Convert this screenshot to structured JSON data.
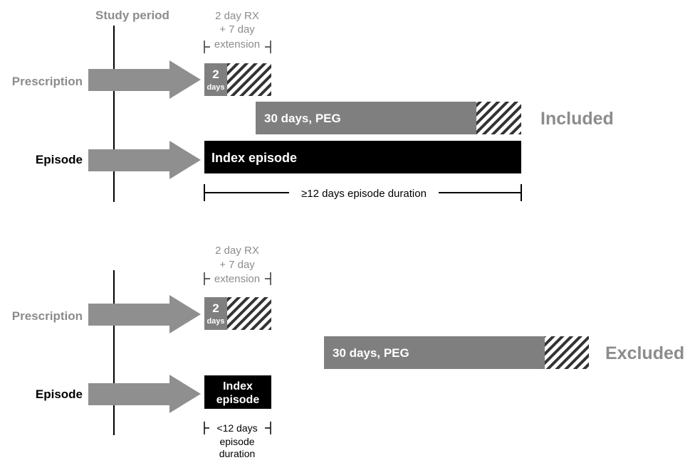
{
  "colors": {
    "gray_text": "#8c8c8c",
    "gray_arrow": "#8f8f8f",
    "gray_bar": "#7f7f7f",
    "black": "#000000",
    "white": "#ffffff",
    "hatch": "#333333"
  },
  "study_period": "Study period",
  "included": {
    "prescription_label": "Prescription",
    "episode_label": "Episode",
    "rx_note": [
      "2 day RX",
      "+ 7 day",
      "extension"
    ],
    "rx_days_value": "2",
    "rx_days_unit": "days",
    "peg_bar": "30 days, PEG",
    "index_bar": "Index episode",
    "duration": "≥12 days episode duration",
    "status": "Included"
  },
  "excluded": {
    "prescription_label": "Prescription",
    "episode_label": "Episode",
    "rx_note": [
      "2 day RX",
      "+ 7 day",
      "extension"
    ],
    "rx_days_value": "2",
    "rx_days_unit": "days",
    "peg_bar": "30 days, PEG",
    "index_bar": [
      "Index",
      "episode"
    ],
    "duration": [
      "<12 days",
      "episode",
      "duration"
    ],
    "status": "Excluded"
  }
}
